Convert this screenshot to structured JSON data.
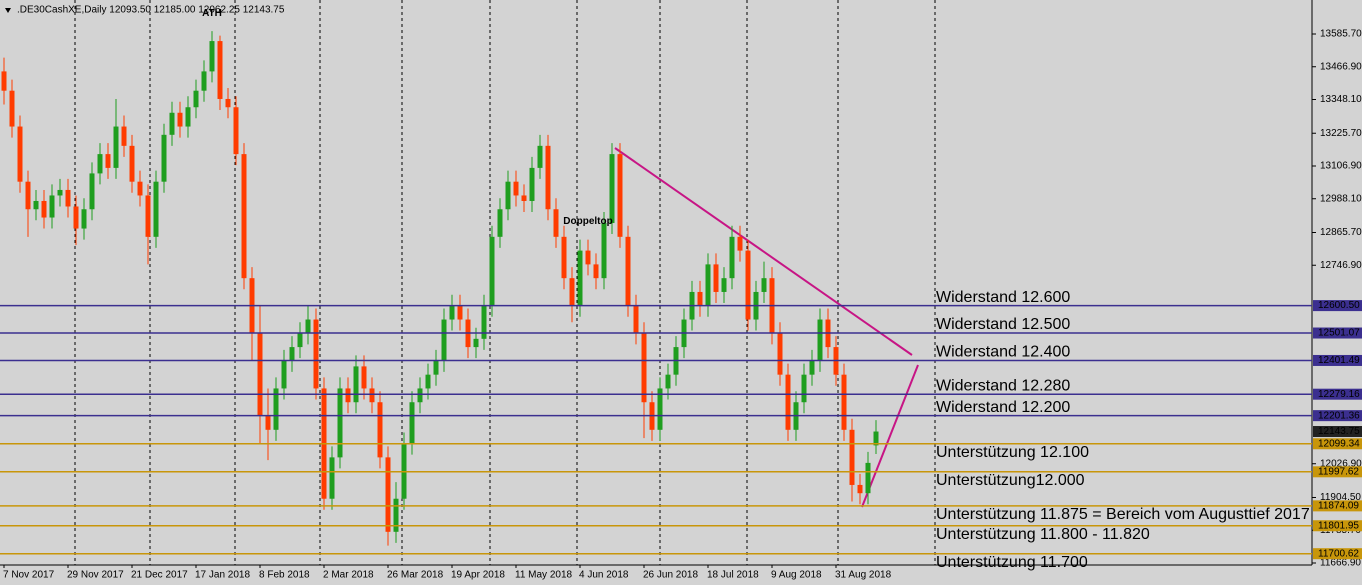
{
  "chart_data": {
    "type": "candlestick",
    "info": ".DE30CashXE,Daily  12093.50 12185.00 12062.25 12143.75",
    "annotations": [
      {
        "text": "ATH",
        "index": 26
      },
      {
        "text": "Doppeltop",
        "index": 73
      }
    ],
    "annotation_color": "#2ecc40",
    "categories": [
      "7 Nov 2017",
      null,
      null,
      null,
      null,
      null,
      null,
      null,
      "29 Nov 2017",
      null,
      null,
      null,
      null,
      null,
      null,
      null,
      "21 Dec 2017",
      null,
      null,
      null,
      null,
      null,
      null,
      null,
      "17 Jan 2018",
      null,
      null,
      null,
      null,
      null,
      null,
      null,
      "8 Feb 2018",
      null,
      null,
      null,
      null,
      null,
      null,
      null,
      "2 Mar 2018",
      null,
      null,
      null,
      null,
      null,
      null,
      null,
      "26 Mar 2018",
      null,
      null,
      null,
      null,
      null,
      null,
      null,
      "19 Apr 2018",
      null,
      null,
      null,
      null,
      null,
      null,
      null,
      "11 May 2018",
      null,
      null,
      null,
      null,
      null,
      null,
      null,
      "4 Jun 2018",
      null,
      null,
      null,
      null,
      null,
      null,
      null,
      "26 Jun 2018",
      null,
      null,
      null,
      null,
      null,
      null,
      null,
      "18 Jul 2018",
      null,
      null,
      null,
      null,
      null,
      null,
      null,
      "9 Aug 2018",
      null,
      null,
      null,
      null,
      null,
      null,
      null,
      "31 Aug 2018",
      null,
      null,
      null,
      null,
      null
    ],
    "open": [
      13450,
      13380,
      13250,
      13050,
      12950,
      12980,
      12920,
      13000,
      13020,
      12960,
      12880,
      12950,
      13080,
      13150,
      13100,
      13250,
      13180,
      13050,
      13000,
      12850,
      13050,
      13220,
      13300,
      13250,
      13320,
      13380,
      13450,
      13560,
      13350,
      13320,
      13150,
      12700,
      12500,
      12200,
      12150,
      12300,
      12400,
      12450,
      12500,
      12550,
      12300,
      11900,
      12050,
      12300,
      12250,
      12380,
      12300,
      12250,
      12050,
      11780,
      11900,
      12100,
      12250,
      12300,
      12350,
      12400,
      12550,
      12600,
      12550,
      12450,
      12480,
      12600,
      12850,
      12950,
      13050,
      13000,
      12980,
      13100,
      13180,
      12950,
      12850,
      12700,
      12600,
      12800,
      12750,
      12700,
      12900,
      13150,
      12850,
      12600,
      12500,
      12250,
      12150,
      12300,
      12350,
      12450,
      12550,
      12650,
      12600,
      12750,
      12650,
      12700,
      12850,
      12800,
      12550,
      12650,
      12700,
      12500,
      12350,
      12150,
      12250,
      12350,
      12400,
      12550,
      12450,
      12350,
      12150,
      11950,
      11920,
      12093.5
    ],
    "high": [
      13500,
      13420,
      13290,
      13090,
      13020,
      13020,
      13040,
      13060,
      13060,
      13000,
      12990,
      13120,
      13190,
      13190,
      13350,
      13290,
      13220,
      13090,
      13040,
      13090,
      13260,
      13340,
      13340,
      13360,
      13420,
      13490,
      13596,
      13580,
      13390,
      13360,
      13190,
      12740,
      12600,
      12300,
      12340,
      12440,
      12490,
      12540,
      12600,
      12590,
      12340,
      12090,
      12340,
      12340,
      12420,
      12420,
      12340,
      12290,
      12090,
      11960,
      12140,
      12290,
      12340,
      12390,
      12440,
      12590,
      12640,
      12640,
      12590,
      12520,
      12640,
      12890,
      12990,
      13090,
      13090,
      13040,
      13140,
      13220,
      13220,
      12990,
      12890,
      12740,
      12840,
      12840,
      12790,
      12940,
      13190,
      13190,
      12890,
      12640,
      12540,
      12290,
      12340,
      12390,
      12490,
      12590,
      12690,
      12690,
      12790,
      12790,
      12740,
      12890,
      12890,
      12840,
      12690,
      12760,
      12740,
      12540,
      12390,
      12290,
      12390,
      12440,
      12590,
      12590,
      12490,
      12390,
      12190,
      11990,
      12070,
      12185
    ],
    "low": [
      13330,
      13210,
      13010,
      12850,
      12910,
      12880,
      12880,
      12960,
      12920,
      12820,
      12840,
      12910,
      13040,
      13060,
      13060,
      13140,
      13010,
      12960,
      12750,
      12810,
      13010,
      13180,
      13210,
      13210,
      13280,
      13340,
      13410,
      13310,
      13280,
      13110,
      12660,
      12400,
      12100,
      12040,
      12110,
      12260,
      12360,
      12410,
      12460,
      12260,
      11860,
      11860,
      12010,
      12210,
      12210,
      12260,
      12210,
      12010,
      11730,
      11740,
      11860,
      12060,
      12210,
      12260,
      12310,
      12360,
      12510,
      12510,
      12410,
      12410,
      12440,
      12560,
      12810,
      12910,
      12960,
      12940,
      12940,
      13060,
      12910,
      12810,
      12660,
      12540,
      12560,
      12710,
      12660,
      12660,
      12860,
      12810,
      12560,
      12460,
      12120,
      12110,
      12110,
      12260,
      12310,
      12410,
      12510,
      12560,
      12560,
      12610,
      12610,
      12660,
      12760,
      12510,
      12510,
      12610,
      12460,
      12310,
      12110,
      12110,
      12210,
      12310,
      12360,
      12410,
      12310,
      12110,
      11890,
      11880,
      11880,
      12062.25
    ],
    "close": [
      13380,
      13250,
      13050,
      12950,
      12980,
      12920,
      13000,
      13020,
      12960,
      12880,
      12950,
      13080,
      13150,
      13100,
      13250,
      13180,
      13050,
      13000,
      12850,
      13050,
      13220,
      13300,
      13250,
      13320,
      13380,
      13450,
      13560,
      13350,
      13320,
      13150,
      12700,
      12500,
      12200,
      12150,
      12300,
      12400,
      12450,
      12500,
      12550,
      12300,
      11900,
      12050,
      12300,
      12250,
      12380,
      12300,
      12250,
      12050,
      11780,
      11900,
      12100,
      12250,
      12300,
      12350,
      12400,
      12550,
      12600,
      12550,
      12450,
      12480,
      12600,
      12850,
      12950,
      13050,
      13000,
      12980,
      13100,
      13180,
      12950,
      12850,
      12700,
      12600,
      12800,
      12750,
      12700,
      12900,
      13150,
      12850,
      12600,
      12500,
      12250,
      12150,
      12300,
      12350,
      12450,
      12550,
      12650,
      12600,
      12750,
      12650,
      12700,
      12850,
      12800,
      12550,
      12650,
      12700,
      12500,
      12350,
      12150,
      12250,
      12350,
      12400,
      12550,
      12450,
      12350,
      12150,
      11950,
      11920,
      12030,
      12143.75
    ],
    "up_color": "#1f9e1f",
    "down_color": "#ff3c00",
    "ylim": [
      11659.6,
      13709.0
    ],
    "yticks": [
      {
        "value": 11666.9,
        "label": "11666.90"
      },
      {
        "value": 11785.7,
        "label": "11785.70"
      },
      {
        "value": 11904.5,
        "label": "11904.50"
      },
      {
        "value": 12026.9,
        "label": "12026.90"
      },
      {
        "value": 12746.9,
        "label": "12746.90"
      },
      {
        "value": 12865.7,
        "label": "12865.70"
      },
      {
        "value": 12988.1,
        "label": "12988.10"
      },
      {
        "value": 13106.9,
        "label": "13106.90"
      },
      {
        "value": 13225.7,
        "label": "13225.70"
      },
      {
        "value": 13348.1,
        "label": "13348.10"
      },
      {
        "value": 13466.9,
        "label": "13466.90"
      },
      {
        "value": 13585.7,
        "label": "13585.70"
      }
    ],
    "resistance_color": "#3b2f8f",
    "support_color": "#c8960a",
    "resistance": [
      {
        "value": 12600.5,
        "label": "12600.50",
        "note": "Widerstand 12.600"
      },
      {
        "value": 12501.07,
        "label": "12501.07",
        "note": "Widerstand 12.500"
      },
      {
        "value": 12401.49,
        "label": "12401.49",
        "note": "Widerstand 12.400"
      },
      {
        "value": 12279.16,
        "label": "12279.16",
        "note": "Widerstand 12.280"
      },
      {
        "value": 12201.36,
        "label": "12201.36",
        "note": "Widerstand 12.200"
      }
    ],
    "support": [
      {
        "value": 12099.34,
        "label": "12099.34",
        "note": "Unterstützung 12.100"
      },
      {
        "value": 11997.62,
        "label": "11997.62",
        "note": "Unterstützung12.000"
      },
      {
        "value": 11874.09,
        "label": "11874.09",
        "note": "Unterstützung 11.875 = Bereich vom Augusttief 2017"
      },
      {
        "value": 11801.95,
        "label": "11801.95",
        "note": "Unterstützung 11.800 - 11.820"
      },
      {
        "value": 11700.62,
        "label": "11700.62",
        "note": "Unterstützung 11.700"
      }
    ],
    "last_price": {
      "value": 12143.75,
      "label": "12143.75"
    }
  }
}
